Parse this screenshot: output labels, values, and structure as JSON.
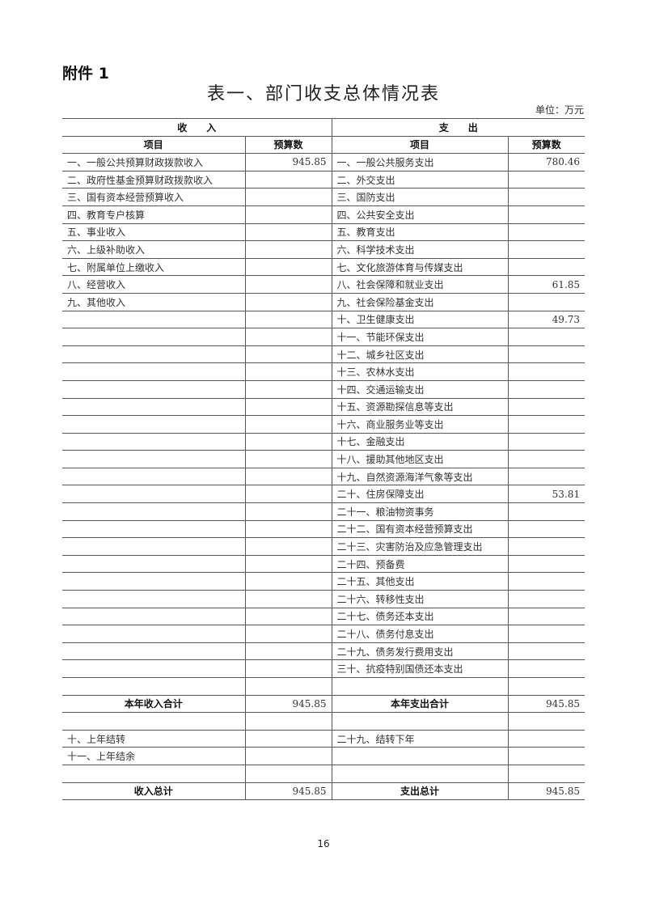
{
  "attachment": "附件 1",
  "title": "表一、部门收支总体情况表",
  "unit": "单位：万元",
  "header": {
    "income": "收　　入",
    "expense": "支　　出",
    "item": "项目",
    "budget": "预算数"
  },
  "rows": [
    {
      "in_item": "一、一般公共预算财政拨款收入",
      "in_val": "945.85",
      "ex_item": "一、一般公共服务支出",
      "ex_val": "780.46"
    },
    {
      "in_item": "二、政府性基金预算财政拨款收入",
      "in_val": "",
      "ex_item": "二、外交支出",
      "ex_val": ""
    },
    {
      "in_item": "三、国有资本经营预算收入",
      "in_val": "",
      "ex_item": "三、国防支出",
      "ex_val": ""
    },
    {
      "in_item": "四、教育专户核算",
      "in_val": "",
      "ex_item": "四、公共安全支出",
      "ex_val": ""
    },
    {
      "in_item": "五、事业收入",
      "in_val": "",
      "ex_item": "五、教育支出",
      "ex_val": ""
    },
    {
      "in_item": "六、上级补助收入",
      "in_val": "",
      "ex_item": "六、科学技术支出",
      "ex_val": ""
    },
    {
      "in_item": "七、附属单位上缴收入",
      "in_val": "",
      "ex_item": "七、文化旅游体育与传媒支出",
      "ex_val": ""
    },
    {
      "in_item": "八、经营收入",
      "in_val": "",
      "ex_item": "八、社会保障和就业支出",
      "ex_val": "61.85"
    },
    {
      "in_item": "九、其他收入",
      "in_val": "",
      "ex_item": "九、社会保险基金支出",
      "ex_val": ""
    },
    {
      "in_item": "",
      "in_val": "",
      "ex_item": "十、卫生健康支出",
      "ex_val": "49.73"
    },
    {
      "in_item": "",
      "in_val": "",
      "ex_item": "十一、节能环保支出",
      "ex_val": ""
    },
    {
      "in_item": "",
      "in_val": "",
      "ex_item": "十二、城乡社区支出",
      "ex_val": ""
    },
    {
      "in_item": "",
      "in_val": "",
      "ex_item": "十三、农林水支出",
      "ex_val": ""
    },
    {
      "in_item": "",
      "in_val": "",
      "ex_item": "十四、交通运输支出",
      "ex_val": ""
    },
    {
      "in_item": "",
      "in_val": "",
      "ex_item": "十五、资源勘探信息等支出",
      "ex_val": ""
    },
    {
      "in_item": "",
      "in_val": "",
      "ex_item": "十六、商业服务业等支出",
      "ex_val": ""
    },
    {
      "in_item": "",
      "in_val": "",
      "ex_item": "十七、金融支出",
      "ex_val": ""
    },
    {
      "in_item": "",
      "in_val": "",
      "ex_item": "十八、援助其他地区支出",
      "ex_val": ""
    },
    {
      "in_item": "",
      "in_val": "",
      "ex_item": "十九、自然资源海洋气象等支出",
      "ex_val": ""
    },
    {
      "in_item": "",
      "in_val": "",
      "ex_item": "二十、住房保障支出",
      "ex_val": "53.81"
    },
    {
      "in_item": "",
      "in_val": "",
      "ex_item": "二十一、粮油物资事务",
      "ex_val": ""
    },
    {
      "in_item": "",
      "in_val": "",
      "ex_item": "二十二、国有资本经营预算支出",
      "ex_val": ""
    },
    {
      "in_item": "",
      "in_val": "",
      "ex_item": "二十三、灾害防治及应急管理支出",
      "ex_val": ""
    },
    {
      "in_item": "",
      "in_val": "",
      "ex_item": "二十四、预备费",
      "ex_val": ""
    },
    {
      "in_item": "",
      "in_val": "",
      "ex_item": "二十五、其他支出",
      "ex_val": ""
    },
    {
      "in_item": "",
      "in_val": "",
      "ex_item": "二十六、转移性支出",
      "ex_val": ""
    },
    {
      "in_item": "",
      "in_val": "",
      "ex_item": "二十七、债务还本支出",
      "ex_val": ""
    },
    {
      "in_item": "",
      "in_val": "",
      "ex_item": "二十八、债务付息支出",
      "ex_val": ""
    },
    {
      "in_item": "",
      "in_val": "",
      "ex_item": "二十九、债务发行费用支出",
      "ex_val": ""
    },
    {
      "in_item": "",
      "in_val": "",
      "ex_item": "三十、抗疫特别国债还本支出",
      "ex_val": ""
    },
    {
      "in_item": "",
      "in_val": "",
      "ex_item": "",
      "ex_val": ""
    },
    {
      "in_item": "本年收入合计",
      "in_val": "945.85",
      "ex_item": "本年支出合计",
      "ex_val": "945.85",
      "bold": true
    },
    {
      "in_item": "",
      "in_val": "",
      "ex_item": "",
      "ex_val": ""
    },
    {
      "in_item": "十、上年结转",
      "in_val": "",
      "ex_item": "二十九、结转下年",
      "ex_val": ""
    },
    {
      "in_item": "十一、上年结余",
      "in_val": "",
      "ex_item": "",
      "ex_val": ""
    },
    {
      "in_item": "",
      "in_val": "",
      "ex_item": "",
      "ex_val": ""
    },
    {
      "in_item": "收入总计",
      "in_val": "945.85",
      "ex_item": "支出总计",
      "ex_val": "945.85",
      "bold": true
    }
  ],
  "page_number": "16"
}
